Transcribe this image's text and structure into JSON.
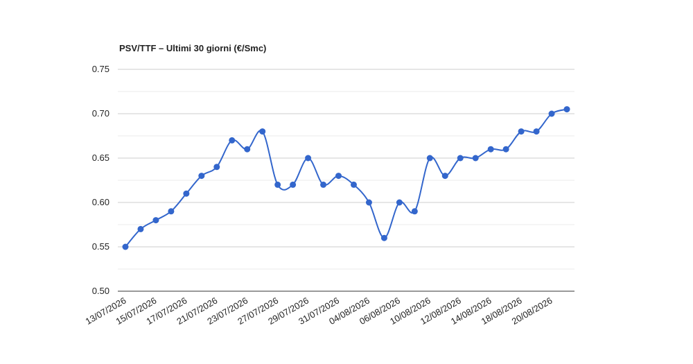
{
  "chart_data": {
    "type": "line",
    "title": "PSV/TTF – Ultimi 30 giorni (€/Smc)",
    "categories": [
      "13/07/2026",
      null,
      "15/07/2026",
      null,
      "17/07/2026",
      null,
      "21/07/2026",
      null,
      "23/07/2026",
      null,
      "27/07/2026",
      null,
      "29/07/2026",
      null,
      "31/07/2026",
      null,
      "04/08/2026",
      null,
      "06/08/2026",
      null,
      "10/08/2026",
      null,
      "12/08/2026",
      null,
      "14/08/2026",
      null,
      "18/08/2026",
      null,
      "20/08/2026",
      null
    ],
    "series": [
      {
        "name": "PSV/TTF",
        "color": "#3366cc",
        "values": [
          0.55,
          0.57,
          0.58,
          0.59,
          0.61,
          0.63,
          0.64,
          0.67,
          0.66,
          0.68,
          0.62,
          0.62,
          0.65,
          0.62,
          0.63,
          0.62,
          0.6,
          0.56,
          0.6,
          0.59,
          0.65,
          0.63,
          0.65,
          0.65,
          0.66,
          0.66,
          0.68,
          0.68,
          0.7,
          0.705
        ]
      }
    ],
    "ylim": [
      0.5,
      0.75
    ],
    "yticks": [
      {
        "value": 0.5,
        "label": "0.50"
      },
      {
        "value": 0.55,
        "label": "0.55"
      },
      {
        "value": 0.6,
        "label": "0.60"
      },
      {
        "value": 0.65,
        "label": "0.65"
      },
      {
        "value": 0.7,
        "label": "0.70"
      },
      {
        "value": 0.75,
        "label": "0.75"
      }
    ],
    "grid": true
  }
}
